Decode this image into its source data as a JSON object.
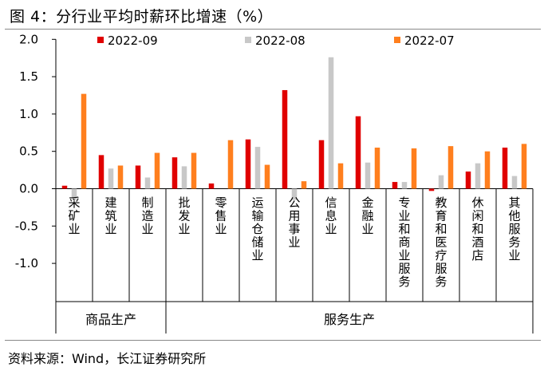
{
  "figure": {
    "title": "图 4：分行业平均时薪环比增速（%）",
    "source": "资料来源：Wind，长江证券研究所"
  },
  "chart_data": {
    "type": "bar",
    "title": "分行业平均时薪环比增速（%）",
    "xlabel": "",
    "ylabel": "",
    "ylim": [
      -1.5,
      2.0
    ],
    "yticks": [
      2.0,
      1.5,
      1.0,
      0.5,
      0.0,
      -0.5,
      -1.0
    ],
    "ytick_labels": [
      "2.0",
      "1.5",
      "1.0",
      "0.5",
      "0.0",
      "-0.5",
      "-1.0"
    ],
    "categories": [
      "采矿业",
      "建筑业",
      "制造业",
      "批发业",
      "零售业",
      "运输仓储业",
      "公用事业",
      "信息业",
      "金融业",
      "专业和商业服务",
      "教育和医疗服务",
      "休闲和酒店",
      "其他服务业"
    ],
    "groups": [
      {
        "label": "商品生产",
        "count": 3
      },
      {
        "label": "服务生产",
        "count": 10
      }
    ],
    "legend_position": "top",
    "series": [
      {
        "name": "2022-09",
        "color": "#e00000",
        "values": [
          0.04,
          0.45,
          0.31,
          0.42,
          0.07,
          0.66,
          1.32,
          0.65,
          0.97,
          0.09,
          -0.03,
          0.23,
          0.55
        ]
      },
      {
        "name": "2022-08",
        "color": "#c8c8c8",
        "values": [
          -0.15,
          0.27,
          0.15,
          0.3,
          0.0,
          0.56,
          -0.15,
          1.76,
          0.35,
          0.09,
          0.18,
          0.34,
          0.17
        ]
      },
      {
        "name": "2022-07",
        "color": "#ff7f1e",
        "values": [
          1.27,
          0.31,
          0.48,
          0.48,
          0.65,
          0.32,
          0.1,
          0.34,
          0.55,
          0.54,
          0.57,
          0.5,
          0.6
        ]
      }
    ]
  }
}
